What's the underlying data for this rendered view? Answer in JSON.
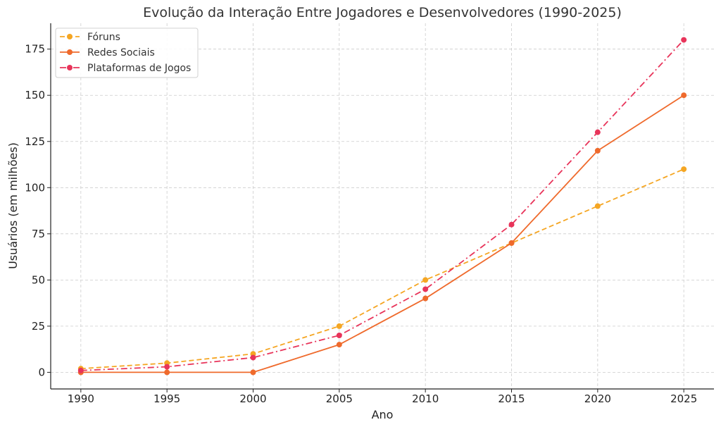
{
  "chart_data": {
    "type": "line",
    "title": "Evolução da Interação Entre Jogadores e Desenvolvedores (1990-2025)",
    "xlabel": "Ano",
    "ylabel": "Usuários (em milhões)",
    "x": [
      1990,
      1995,
      2000,
      2005,
      2010,
      2015,
      2020,
      2025
    ],
    "xlim": [
      1988.25,
      2026.75
    ],
    "ylim": [
      -9,
      189
    ],
    "x_ticks": [
      1990,
      1995,
      2000,
      2005,
      2010,
      2015,
      2020,
      2025
    ],
    "y_ticks": [
      0,
      25,
      50,
      75,
      100,
      125,
      150,
      175
    ],
    "grid": true,
    "legend_position": "top-left",
    "series": [
      {
        "name": "Fóruns",
        "values": [
          2,
          5,
          10,
          25,
          50,
          70,
          90,
          110
        ],
        "color": "#f5a623",
        "line_style": "dashed"
      },
      {
        "name": "Redes Sociais",
        "values": [
          0,
          0,
          0,
          15,
          40,
          70,
          120,
          150
        ],
        "color": "#ef6a2c",
        "line_style": "solid"
      },
      {
        "name": "Plataformas de Jogos",
        "values": [
          1,
          3,
          8,
          20,
          45,
          80,
          130,
          180
        ],
        "color": "#e8345a",
        "line_style": "dashdot"
      }
    ]
  }
}
